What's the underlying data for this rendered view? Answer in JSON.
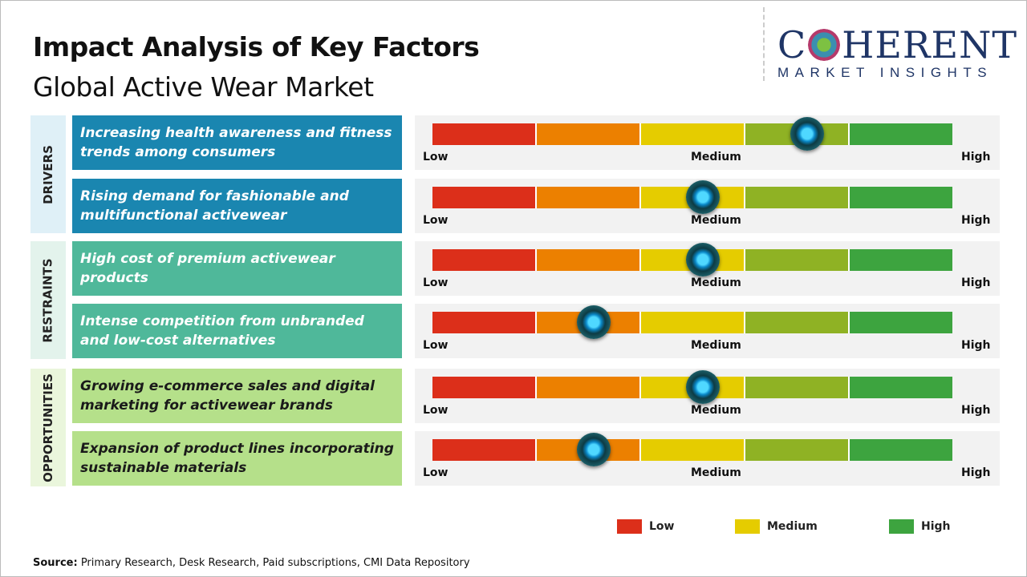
{
  "title": "Impact Analysis of Key Factors",
  "subtitle": "Global Active Wear Market",
  "logo": {
    "top": "COHERENT",
    "bottom": "MARKET INSIGHTS"
  },
  "colors": {
    "low": "#dc2f1a",
    "low_medium": "#ec8000",
    "medium": "#e5cc00",
    "medium_high": "#8fb224",
    "high": "#3da43f",
    "drivers": "#1a86b0",
    "restraints": "#4fb89a",
    "opportunities": "#b5e08a"
  },
  "chart_data": {
    "type": "gauge",
    "scale_labels": {
      "low": "Low",
      "medium": "Medium",
      "high": "High"
    },
    "groups": [
      {
        "name": "DRIVERS",
        "factors": [
          {
            "label": "Increasing health awareness and fitness trends among consumers",
            "impact": 0.72
          },
          {
            "label": "Rising demand for fashionable and multifunctional activewear",
            "impact": 0.52
          }
        ]
      },
      {
        "name": "RESTRAINTS",
        "factors": [
          {
            "label": "High cost of premium activewear products",
            "impact": 0.52
          },
          {
            "label": "Intense competition from unbranded and low-cost alternatives",
            "impact": 0.31
          }
        ]
      },
      {
        "name": "OPPORTUNITIES",
        "factors": [
          {
            "label": "Growing e-commerce sales and digital marketing for activewear brands",
            "impact": 0.52
          },
          {
            "label": "Expansion of product lines incorporating sustainable materials",
            "impact": 0.31
          }
        ]
      }
    ],
    "legend": [
      "Low",
      "Medium",
      "High"
    ]
  },
  "source": {
    "label": "Source:",
    "text": " Primary Research, Desk Research, Paid subscriptions, CMI Data Repository"
  }
}
